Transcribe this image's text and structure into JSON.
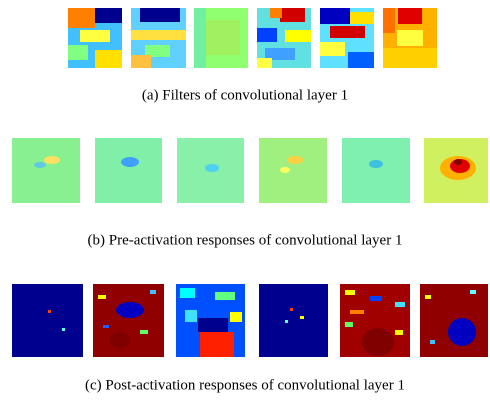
{
  "figure": {
    "panels": [
      {
        "caption": "(a)  Filters of convolutional layer 1"
      },
      {
        "caption": "(b)  Pre-activation responses of convolutional layer 1"
      },
      {
        "caption": "(c)  Post-activation responses of convolutional layer 1"
      }
    ]
  }
}
